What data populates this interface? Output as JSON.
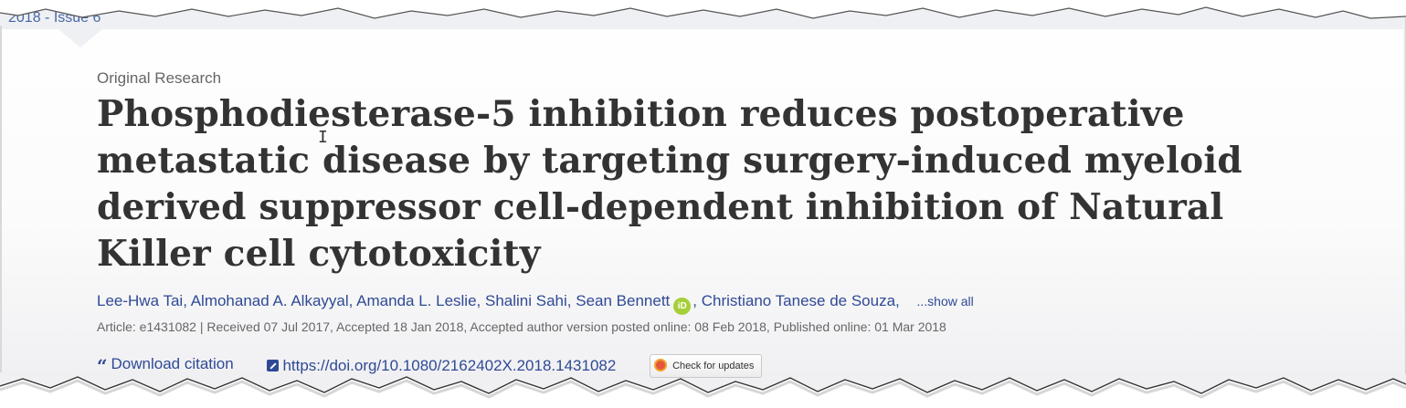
{
  "issue": {
    "label": "2018 - Issue 6"
  },
  "article": {
    "type": "Original Research",
    "title": "Phosphodiesterase-5 inhibition reduces postoperative metastatic disease by targeting surgery-induced myeloid derived suppressor cell-dependent inhibition of Natural Killer cell cytotoxicity"
  },
  "authors": {
    "list": [
      "Lee-Hwa Tai",
      "Almohanad A. Alkayyal",
      "Amanda L. Leslie",
      "Shalini Sahi",
      "Sean Bennett",
      "Christiano Tanese de Souza"
    ],
    "orcid_badge": "iD",
    "show_all": "...show all"
  },
  "meta": {
    "line": "Article: e1431082 | Received 07 Jul 2017, Accepted 18 Jan 2018, Accepted author version posted online: 08 Feb 2018, Published online: 01 Mar 2018"
  },
  "links": {
    "download_citation": "Download citation",
    "doi": "https://doi.org/10.1080/2162402X.2018.1431082",
    "check_updates": "Check for updates"
  },
  "colors": {
    "link": "#2f4a94",
    "title": "#333333",
    "orcid": "#a6ce39"
  }
}
